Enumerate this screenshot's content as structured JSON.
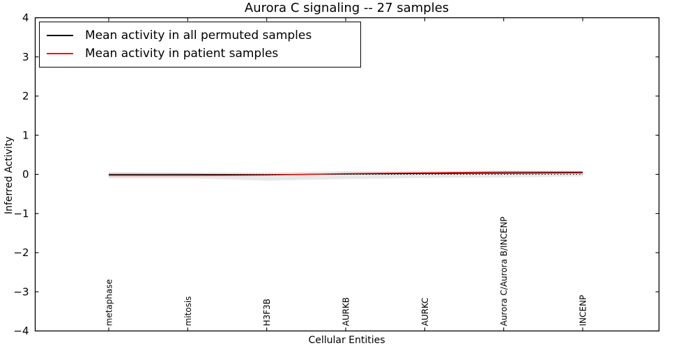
{
  "chart_data": {
    "type": "line",
    "title": "Aurora C signaling -- 27 samples",
    "xlabel": "Cellular Entities",
    "ylabel": "Inferred Activity",
    "ylim": [
      -4,
      4
    ],
    "yticks": [
      4,
      3,
      2,
      1,
      0,
      -1,
      -2,
      -3,
      -4
    ],
    "ytick_labels": [
      "4",
      "3",
      "2",
      "1",
      "0",
      "−1",
      "−2",
      "−3",
      "−4"
    ],
    "categories": [
      "metaphase",
      "mitosis",
      "H3F3B",
      "AURKB",
      "AURKC",
      "Aurora C/Aurora B/INCENP",
      "INCENP"
    ],
    "series": [
      {
        "name": "Mean activity in all permuted samples",
        "color": "#000000",
        "values": [
          0.0,
          0.0,
          -0.01,
          0.01,
          0.02,
          0.03,
          0.04
        ]
      },
      {
        "name": "Mean activity in patient samples",
        "color": "#ff0000",
        "values": [
          -0.03,
          -0.03,
          -0.02,
          0.02,
          0.04,
          0.06,
          0.06
        ]
      }
    ],
    "band": {
      "name": "permuted-activity-range",
      "color": "#e8e8e8",
      "upper": [
        0.06,
        0.05,
        0.05,
        0.08,
        0.08,
        0.1,
        0.09
      ],
      "lower": [
        -0.1,
        -0.1,
        -0.16,
        -0.12,
        -0.09,
        -0.08,
        -0.05
      ]
    },
    "zero_line": {
      "y": 0,
      "color": "#000000",
      "style": "dotted"
    },
    "legend_position": "upper-left",
    "grid": false,
    "frame_color": "#000000"
  }
}
